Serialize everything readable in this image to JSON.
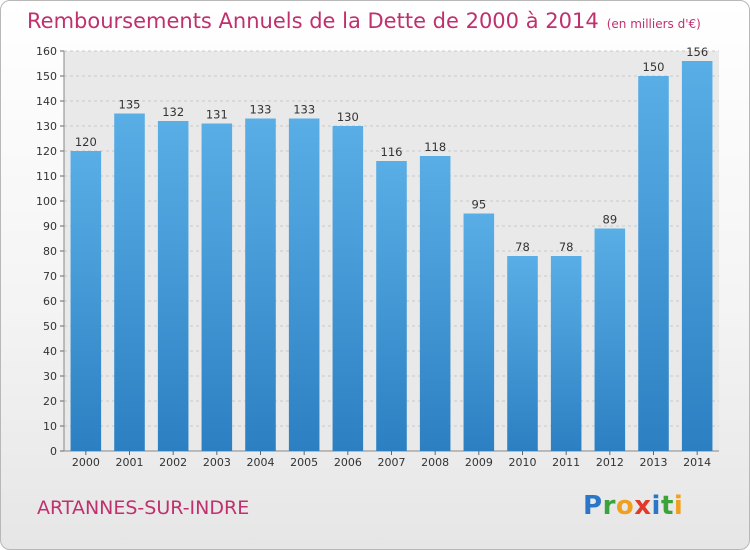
{
  "header": {
    "title": "Remboursements Annuels de la Dette de 2000 à 2014",
    "unit": "(en milliers d'€)"
  },
  "footer": {
    "commune": "ARTANNES-SUR-INDRE",
    "logo_letters": [
      {
        "ch": "P",
        "color": "#2a77c9"
      },
      {
        "ch": "r",
        "color": "#3aa33a"
      },
      {
        "ch": "o",
        "color": "#f0a020"
      },
      {
        "ch": "x",
        "color": "#e23a2a"
      },
      {
        "ch": "i",
        "color": "#2a77c9"
      },
      {
        "ch": "t",
        "color": "#3aa33a"
      },
      {
        "ch": "i",
        "color": "#f0a020"
      }
    ]
  },
  "colors": {
    "bar_top": "#5aaee6",
    "bar_bottom": "#2c80c2",
    "title": "#c0306e"
  },
  "chart_data": {
    "type": "bar",
    "title": "Remboursements Annuels de la Dette de 2000 à 2014",
    "xlabel": "",
    "ylabel": "",
    "categories": [
      "2000",
      "2001",
      "2002",
      "2003",
      "2004",
      "2005",
      "2006",
      "2007",
      "2008",
      "2009",
      "2010",
      "2011",
      "2012",
      "2013",
      "2014"
    ],
    "values": [
      120,
      135,
      132,
      131,
      133,
      133,
      130,
      116,
      118,
      95,
      78,
      78,
      89,
      150,
      156
    ],
    "ylim": [
      0,
      160
    ],
    "yticks": [
      0,
      10,
      20,
      30,
      40,
      50,
      60,
      70,
      80,
      90,
      100,
      110,
      120,
      130,
      140,
      150,
      160
    ],
    "grid": true
  }
}
